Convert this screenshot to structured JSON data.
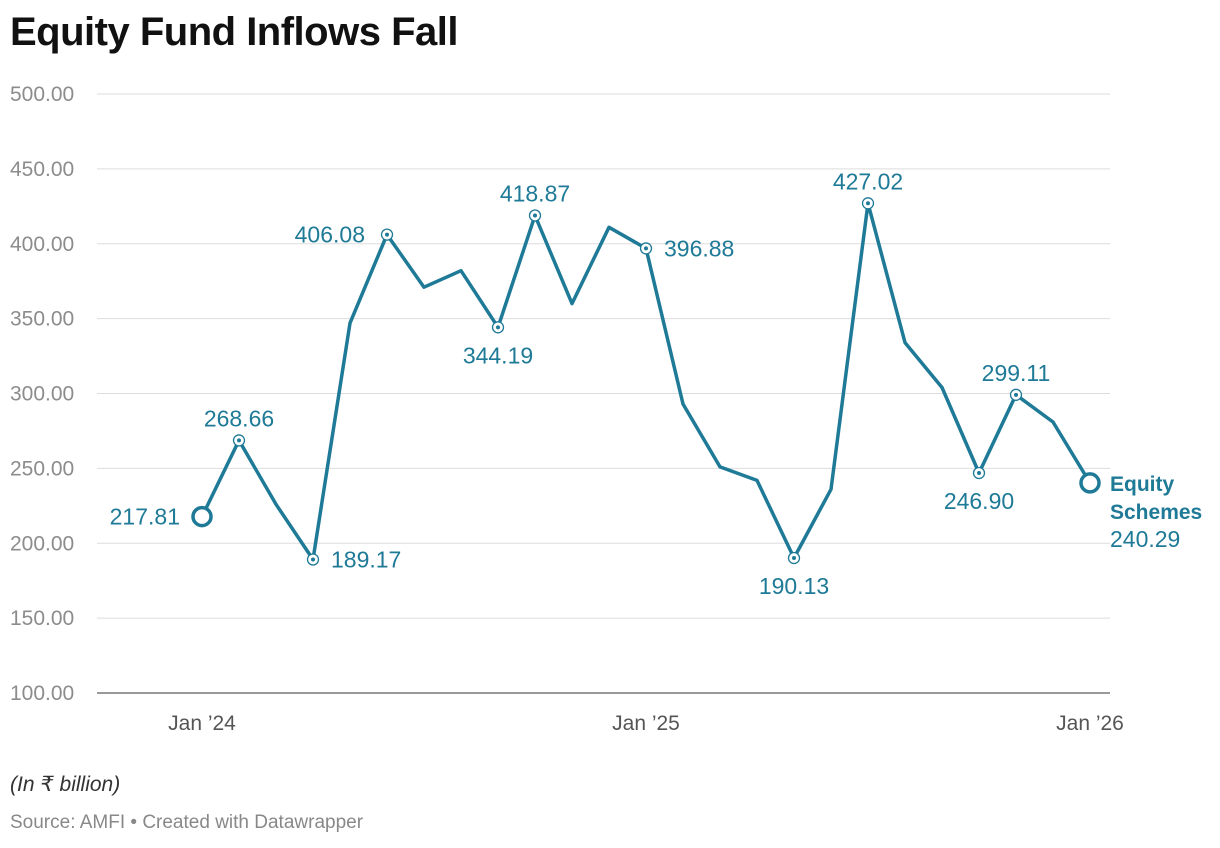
{
  "title": "Equity Fund Inflows Fall",
  "note": "(In ₹ billion)",
  "source_text": "Source: AMFI",
  "credit_text": "• Created with Datawrapper",
  "colors": {
    "line": "#1e7a96",
    "grid": "#dddddd",
    "tick": "#8c8c8c"
  },
  "chart_data": {
    "type": "line",
    "title": "Equity Fund Inflows Fall",
    "ylabel": "(In ₹ billion)",
    "xlabel": "",
    "ylim": [
      100,
      500
    ],
    "yticks": [
      100,
      150,
      200,
      250,
      300,
      350,
      400,
      450,
      500
    ],
    "ytick_labels": [
      "100.00",
      "150.00",
      "200.00",
      "250.00",
      "300.00",
      "350.00",
      "400.00",
      "450.00",
      "500.00"
    ],
    "xticks": [
      {
        "label": "Jan ’24",
        "index": 0
      },
      {
        "label": "Jan ’25",
        "index": 12
      },
      {
        "label": "Jan ’26",
        "index": 24
      }
    ],
    "grid": true,
    "series": [
      {
        "name": "Equity Schemes",
        "x": [
          "2024-01",
          "2024-02",
          "2024-03",
          "2024-04",
          "2024-05",
          "2024-06",
          "2024-07",
          "2024-08",
          "2024-09",
          "2024-10",
          "2024-11",
          "2024-12",
          "2025-01",
          "2025-02",
          "2025-03",
          "2025-04",
          "2025-05",
          "2025-06",
          "2025-07",
          "2025-08",
          "2025-09",
          "2025-10",
          "2025-11",
          "2025-12",
          "2026-01"
        ],
        "values": [
          217.81,
          268.66,
          226,
          189.17,
          347,
          406.08,
          371,
          382,
          344.19,
          418.87,
          360,
          411,
          396.88,
          293,
          251,
          242,
          190.13,
          236,
          427.02,
          334,
          304,
          246.9,
          299.11,
          281,
          240.29
        ]
      }
    ],
    "data_labels": [
      {
        "index": 0,
        "text": "217.81",
        "pos": "left"
      },
      {
        "index": 1,
        "text": "268.66",
        "pos": "above"
      },
      {
        "index": 3,
        "text": "189.17",
        "pos": "right"
      },
      {
        "index": 5,
        "text": "406.08",
        "pos": "left"
      },
      {
        "index": 8,
        "text": "344.19",
        "pos": "below"
      },
      {
        "index": 9,
        "text": "418.87",
        "pos": "above"
      },
      {
        "index": 12,
        "text": "396.88",
        "pos": "right"
      },
      {
        "index": 16,
        "text": "190.13",
        "pos": "below"
      },
      {
        "index": 18,
        "text": "427.02",
        "pos": "above"
      },
      {
        "index": 21,
        "text": "246.90",
        "pos": "below"
      },
      {
        "index": 22,
        "text": "299.11",
        "pos": "above"
      },
      {
        "index": 24,
        "text": "240.29",
        "pos": "end"
      }
    ],
    "end_label": [
      "Equity",
      "Schemes"
    ]
  }
}
